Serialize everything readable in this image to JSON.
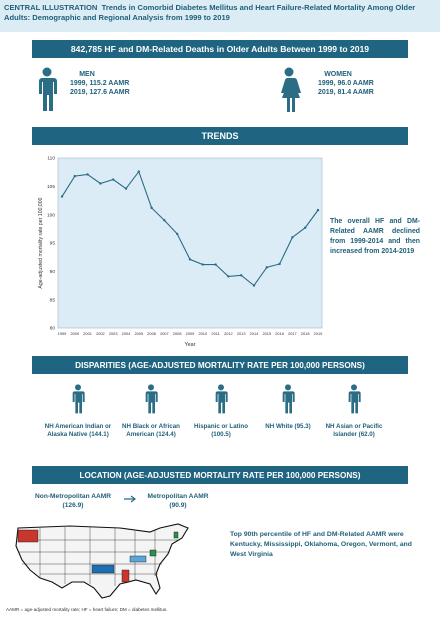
{
  "header": {
    "label": "CENTRAL ILLUSTRATION",
    "title": "Trends in Comorbid Diabetes Mellitus and Heart Failure-Related Mortality Among Older Adults: Demographic and Regional Analysis from 1999 to 2019"
  },
  "summary_banner": "842,785 HF and DM-Related Deaths in Older Adults Between 1999 to 2019",
  "men": {
    "label": "MEN",
    "line1": "1999, 115.2 AAMR",
    "line2": "2019, 127.6 AAMR"
  },
  "women": {
    "label": "WOMEN",
    "line1": "1999, 96.0 AAMR",
    "line2": "2019, 81.4 AAMR"
  },
  "trends_banner": "TRENDS",
  "trend_note": "The overall HF and DM-Related AAMR declined from 1999-2014 and then increased from 2014-2019",
  "chart_data": {
    "type": "line",
    "xlabel": "Year",
    "ylabel": "Age-adjusted mortality rate per 100,000",
    "ylim": [
      80,
      110
    ],
    "yticks": [
      80,
      85,
      90,
      95,
      100,
      105,
      110
    ],
    "x": [
      1999,
      2000,
      2001,
      2002,
      2003,
      2004,
      2005,
      2006,
      2007,
      2008,
      2009,
      2010,
      2011,
      2012,
      2013,
      2014,
      2015,
      2016,
      2017,
      2018,
      2019
    ],
    "values": [
      103.2,
      106.8,
      107.1,
      105.5,
      106.2,
      104.6,
      107.6,
      101.2,
      99.0,
      96.6,
      92.1,
      91.2,
      91.2,
      89.1,
      89.3,
      87.5,
      90.7,
      91.3,
      96.0,
      97.7,
      100.8
    ],
    "line_color": "#2a6b86",
    "plot_bg": "#dcecf6"
  },
  "disparities_banner": "DISPARITIES (AGE-ADJUSTED MORTALITY RATE PER 100,000 PERSONS)",
  "groups": [
    {
      "label": "NH American Indian or Alaska Native (144.1)"
    },
    {
      "label": "NH Black or African American (124.4)"
    },
    {
      "label": "Hispanic or Latino (100.5)"
    },
    {
      "label": "NH White (95.3)"
    },
    {
      "label": "NH Asian or Pacific Islander (62.0)"
    }
  ],
  "location_banner": "LOCATION (AGE-ADJUSTED MORTALITY RATE PER 100,000 PERSONS)",
  "nonmetro": {
    "label": "Non-Metropolitan AAMR",
    "value": "(126.9)"
  },
  "metro": {
    "label": "Metropolitan AAMR",
    "value": "(90.9)"
  },
  "map_note": "Top 90th percentile of HF and DM-Related AAMR were Kentucky, Mississippi, Oklahoma, Oregon, Vermont, and West Virginia",
  "highlight_colors": [
    "#c8362d",
    "#1c6fb2",
    "#ffffff",
    "#2d8f4e",
    "#5aa6d8"
  ],
  "footnote": "AAMR = age-adjusted mortality rate; HF = heart failure; DM = diabetes mellitus."
}
